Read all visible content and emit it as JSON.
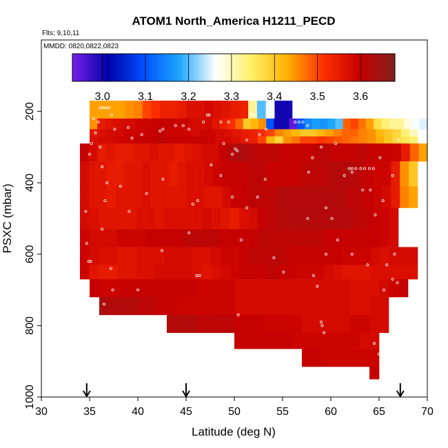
{
  "chart_data": {
    "type": "heatmap",
    "title": "ATOM1 North_America H1211_PECD",
    "annotations": [
      "Flts: 9,10,11",
      "MMDD: 0820,0822,0823"
    ],
    "xlabel": "Latitude (deg N)",
    "ylabel": "PSXC (mbar)",
    "xlim": [
      30,
      70
    ],
    "ylim": [
      1000,
      0
    ],
    "x_ticks": [
      30,
      35,
      40,
      45,
      50,
      55,
      60,
      65,
      70
    ],
    "y_ticks": [
      200,
      400,
      600,
      800,
      1000
    ],
    "colorbar": {
      "range": [
        2.93,
        3.68
      ],
      "ticks": [
        3.0,
        3.1,
        3.2,
        3.3,
        3.4,
        3.5,
        3.6
      ],
      "colors": [
        "#7a1fe8",
        "#0000a8",
        "#0050ff",
        "#1ea8ff",
        "#ffffff",
        "#fff066",
        "#ffb000",
        "#ff3000",
        "#c80000",
        "#802020"
      ]
    },
    "flight_markers_lat": [
      34.7,
      45.0,
      67.2
    ],
    "rows": [
      {
        "p": [
          170,
          220
        ],
        "lat": [
          35,
          56
        ],
        "values": [
          3.44,
          3.44,
          3.44,
          3.44,
          3.45,
          3.46,
          3.5,
          3.52,
          3.54,
          3.54,
          3.55,
          3.57,
          3.57,
          3.58,
          3.57,
          3.56,
          3.55,
          3.54,
          3.32,
          3.2,
          3.26,
          3.0,
          3.0
        ]
      },
      {
        "p": [
          220,
          250
        ],
        "lat": [
          35,
          70
        ],
        "values": [
          3.45,
          3.55,
          3.56,
          3.57,
          3.58,
          3.58,
          3.59,
          3.59,
          3.6,
          3.6,
          3.6,
          3.59,
          3.59,
          3.58,
          3.58,
          3.58,
          3.56,
          3.54,
          3.52,
          3.48,
          3.4,
          3.42,
          3.45,
          3.1,
          3.0,
          3.0,
          2.95,
          3.1,
          3.15,
          3.17,
          3.16,
          3.18,
          3.2,
          3.48,
          3.5,
          3.47,
          3.44,
          3.37,
          3.34,
          3.32,
          3.32,
          3.28,
          3.26,
          3.25
        ]
      },
      {
        "p": [
          250,
          270
        ],
        "lat": [
          35,
          69
        ],
        "values": [
          3.56,
          3.57,
          3.58,
          3.58,
          3.59,
          3.59,
          3.59,
          3.6,
          3.6,
          3.59,
          3.59,
          3.59,
          3.58,
          3.59,
          3.59,
          3.58,
          3.57,
          3.56,
          3.55,
          3.54,
          3.52,
          3.5,
          3.46,
          3.44,
          3.42,
          3.4,
          3.4,
          3.42,
          3.44,
          3.46,
          3.48,
          3.48,
          3.46,
          3.45,
          3.42,
          3.4,
          3.38,
          3.34,
          3.3
        ]
      },
      {
        "p": [
          270,
          290
        ],
        "lat": [
          35,
          69
        ],
        "values": [
          3.57,
          3.58,
          3.58,
          3.59,
          3.59,
          3.6,
          3.6,
          3.6,
          3.61,
          3.6,
          3.6,
          3.6,
          3.6,
          3.6,
          3.59,
          3.58,
          3.58,
          3.57,
          3.55,
          3.54,
          3.5,
          3.42,
          3.38,
          3.45,
          3.47,
          3.5,
          3.5,
          3.51,
          3.5,
          3.49,
          3.48,
          3.47,
          3.46,
          3.45,
          3.43,
          3.4,
          3.38,
          3.36,
          3.34
        ]
      },
      {
        "p": [
          290,
          340
        ],
        "lat": [
          34,
          70
        ],
        "values": [
          3.6,
          3.58,
          3.55,
          3.56,
          3.55,
          3.55,
          3.56,
          3.56,
          3.57,
          3.56,
          3.56,
          3.55,
          3.56,
          3.57,
          3.58,
          3.58,
          3.6,
          3.62,
          3.63,
          3.62,
          3.61,
          3.61,
          3.61,
          3.6,
          3.6,
          3.6,
          3.6,
          3.61,
          3.61,
          3.6,
          3.6,
          3.6,
          3.61,
          3.6,
          3.6,
          3.6,
          3.59,
          3.55,
          3.48,
          3.44
        ]
      },
      {
        "p": [
          340,
          410
        ],
        "lat": [
          34,
          69
        ],
        "values": [
          3.58,
          3.56,
          3.56,
          3.55,
          3.55,
          3.56,
          3.56,
          3.57,
          3.56,
          3.56,
          3.55,
          3.56,
          3.57,
          3.57,
          3.58,
          3.59,
          3.6,
          3.6,
          3.6,
          3.61,
          3.61,
          3.6,
          3.6,
          3.6,
          3.6,
          3.61,
          3.61,
          3.61,
          3.62,
          3.62,
          3.62,
          3.61,
          3.6,
          3.59,
          3.59,
          3.55,
          3.45,
          3.4
        ]
      },
      {
        "p": [
          410,
          470
        ],
        "lat": [
          34,
          69
        ],
        "values": [
          3.58,
          3.56,
          3.56,
          3.55,
          3.56,
          3.56,
          3.56,
          3.57,
          3.56,
          3.56,
          3.56,
          3.56,
          3.57,
          3.57,
          3.56,
          3.56,
          3.58,
          3.6,
          3.6,
          3.61,
          3.61,
          3.61,
          3.62,
          3.62,
          3.62,
          3.62,
          3.62,
          3.62,
          3.62,
          3.62,
          3.61,
          3.61,
          3.6,
          3.59,
          3.58,
          3.55,
          3.46,
          3.44
        ]
      },
      {
        "p": [
          470,
          530
        ],
        "lat": [
          34,
          67
        ],
        "values": [
          3.58,
          3.57,
          3.56,
          3.56,
          3.56,
          3.56,
          3.57,
          3.57,
          3.56,
          3.57,
          3.57,
          3.57,
          3.57,
          3.58,
          3.57,
          3.56,
          3.55,
          3.57,
          3.58,
          3.6,
          3.61,
          3.62,
          3.62,
          3.62,
          3.62,
          3.62,
          3.62,
          3.62,
          3.62,
          3.61,
          3.61,
          3.6,
          3.59,
          3.58
        ]
      },
      {
        "p": [
          530,
          580
        ],
        "lat": [
          34,
          67
        ],
        "values": [
          3.59,
          3.58,
          3.58,
          3.58,
          3.59,
          3.59,
          3.59,
          3.6,
          3.6,
          3.6,
          3.6,
          3.61,
          3.61,
          3.61,
          3.61,
          3.6,
          3.6,
          3.6,
          3.6,
          3.61,
          3.61,
          3.61,
          3.61,
          3.61,
          3.61,
          3.61,
          3.6,
          3.6,
          3.6,
          3.6,
          3.6,
          3.6,
          3.59,
          3.58
        ]
      },
      {
        "p": [
          580,
          630
        ],
        "lat": [
          34,
          69
        ],
        "values": [
          3.59,
          3.58,
          3.57,
          3.57,
          3.56,
          3.56,
          3.57,
          3.57,
          3.57,
          3.58,
          3.58,
          3.58,
          3.57,
          3.57,
          3.58,
          3.59,
          3.59,
          3.6,
          3.61,
          3.61,
          3.61,
          3.61,
          3.6,
          3.6,
          3.6,
          3.6,
          3.6,
          3.6,
          3.59,
          3.59,
          3.59,
          3.58,
          3.57,
          3.58,
          3.58,
          3.58
        ]
      },
      {
        "p": [
          630,
          670
        ],
        "lat": [
          34,
          69
        ],
        "values": [
          3.59,
          3.56,
          3.55,
          3.55,
          3.56,
          3.56,
          3.57,
          3.57,
          3.58,
          3.58,
          3.58,
          3.58,
          3.57,
          3.56,
          3.57,
          3.58,
          3.59,
          3.6,
          3.6,
          3.6,
          3.61,
          3.6,
          3.6,
          3.59,
          3.59,
          3.59,
          3.58,
          3.57,
          3.56,
          3.56,
          3.56,
          3.57,
          3.57,
          3.57,
          3.57,
          3.57
        ]
      },
      {
        "p": [
          670,
          720
        ],
        "lat": [
          35,
          68
        ],
        "values": [
          3.6,
          3.59,
          3.59,
          3.6,
          3.6,
          3.6,
          3.6,
          3.6,
          3.6,
          3.6,
          3.6,
          3.59,
          3.59,
          3.59,
          3.59,
          3.58,
          3.58,
          3.58,
          3.58,
          3.58,
          3.58,
          3.58,
          3.58,
          3.58,
          3.58,
          3.58,
          3.58,
          3.57,
          3.57,
          3.57,
          3.58,
          3.59,
          3.6
        ]
      },
      {
        "p": [
          720,
          770
        ],
        "lat": [
          36,
          66
        ],
        "values": [
          3.63,
          3.62,
          3.62,
          3.62,
          3.61,
          3.61,
          3.6,
          3.6,
          3.59,
          3.59,
          3.59,
          3.59,
          3.59,
          3.59,
          3.58,
          3.58,
          3.58,
          3.58,
          3.58,
          3.58,
          3.58,
          3.58,
          3.58,
          3.58,
          3.58,
          3.58,
          3.57,
          3.57,
          3.58,
          3.58
        ]
      },
      {
        "p": [
          770,
          820
        ],
        "lat": [
          43,
          66
        ],
        "values": [
          3.62,
          3.62,
          3.62,
          3.61,
          3.61,
          3.61,
          3.61,
          3.6,
          3.6,
          3.6,
          3.59,
          3.59,
          3.59,
          3.59,
          3.58,
          3.58,
          3.58,
          3.58,
          3.58,
          3.59,
          3.59,
          3.58,
          3.58
        ]
      },
      {
        "p": [
          820,
          865
        ],
        "lat": [
          50,
          65
        ],
        "values": [
          3.6,
          3.6,
          3.6,
          3.6,
          3.6,
          3.6,
          3.59,
          3.59,
          3.59,
          3.59,
          3.59,
          3.59,
          3.59,
          3.58,
          3.58
        ]
      },
      {
        "p": [
          865,
          915
        ],
        "lat": [
          57,
          65
        ],
        "values": [
          3.6,
          3.6,
          3.59,
          3.59,
          3.59,
          3.59,
          3.59,
          3.59
        ]
      },
      {
        "p": [
          915,
          950
        ],
        "lat": [
          64,
          65
        ],
        "values": [
          3.6
        ]
      }
    ],
    "samples": [
      [
        35.4,
        220
      ],
      [
        35.9,
        230
      ],
      [
        36.1,
        190
      ],
      [
        36.4,
        190
      ],
      [
        36.7,
        190
      ],
      [
        37.0,
        190
      ],
      [
        37.3,
        210
      ],
      [
        35.6,
        260
      ],
      [
        35.2,
        290
      ],
      [
        36.1,
        300
      ],
      [
        37.6,
        250
      ],
      [
        39.0,
        245
      ],
      [
        39.4,
        275
      ],
      [
        40.4,
        265
      ],
      [
        42.3,
        255
      ],
      [
        42.6,
        250
      ],
      [
        43.9,
        240
      ],
      [
        44.7,
        240
      ],
      [
        45.3,
        250
      ],
      [
        46.8,
        230
      ],
      [
        47.2,
        210
      ],
      [
        47.4,
        210
      ],
      [
        48.6,
        230
      ],
      [
        48.9,
        290
      ],
      [
        49.4,
        230
      ],
      [
        49.8,
        320
      ],
      [
        50.1,
        305
      ],
      [
        50.3,
        310
      ],
      [
        51.3,
        280
      ],
      [
        51.7,
        210
      ],
      [
        52.0,
        210
      ],
      [
        52.6,
        265
      ],
      [
        53.3,
        250
      ],
      [
        56.3,
        230
      ],
      [
        56.7,
        230
      ],
      [
        57.1,
        230
      ],
      [
        57.6,
        240
      ],
      [
        58.1,
        330
      ],
      [
        57.7,
        370
      ],
      [
        59.0,
        300
      ],
      [
        60.5,
        290
      ],
      [
        61.9,
        360
      ],
      [
        62.2,
        360
      ],
      [
        62.6,
        360
      ],
      [
        63.1,
        360
      ],
      [
        63.5,
        360
      ],
      [
        64.0,
        360
      ],
      [
        64.4,
        360
      ],
      [
        65.1,
        330
      ],
      [
        67.0,
        280
      ],
      [
        69.4,
        220
      ],
      [
        35.0,
        320
      ],
      [
        36.3,
        355
      ],
      [
        36.8,
        400
      ],
      [
        36.6,
        450
      ],
      [
        38.2,
        410
      ],
      [
        39.1,
        480
      ],
      [
        40.9,
        430
      ],
      [
        42.6,
        390
      ],
      [
        45.7,
        460
      ],
      [
        46.2,
        450
      ],
      [
        47.6,
        350
      ],
      [
        48.6,
        380
      ],
      [
        49.8,
        440
      ],
      [
        51.3,
        470
      ],
      [
        52.4,
        440
      ],
      [
        53.2,
        390
      ],
      [
        57.6,
        500
      ],
      [
        59.5,
        470
      ],
      [
        60.1,
        500
      ],
      [
        61.4,
        380
      ],
      [
        62.2,
        370
      ],
      [
        63.3,
        420
      ],
      [
        64.1,
        420
      ],
      [
        64.6,
        490
      ],
      [
        65.4,
        450
      ],
      [
        66.4,
        380
      ],
      [
        34.6,
        480
      ],
      [
        34.7,
        570
      ],
      [
        34.9,
        620
      ],
      [
        35.1,
        620
      ],
      [
        36.3,
        530
      ],
      [
        37.2,
        640
      ],
      [
        40.0,
        700
      ],
      [
        42.5,
        590
      ],
      [
        45.3,
        540
      ],
      [
        46.1,
        660
      ],
      [
        46.4,
        660
      ],
      [
        50.7,
        560
      ],
      [
        54.1,
        610
      ],
      [
        55.1,
        650
      ],
      [
        58.2,
        660
      ],
      [
        58.6,
        690
      ],
      [
        59.5,
        600
      ],
      [
        60.7,
        560
      ],
      [
        62.2,
        600
      ],
      [
        63.8,
        630
      ],
      [
        65.8,
        630
      ],
      [
        66.6,
        600
      ],
      [
        65.5,
        700
      ],
      [
        66.4,
        670
      ],
      [
        66.9,
        680
      ],
      [
        36.5,
        740
      ],
      [
        37.4,
        700
      ],
      [
        50.4,
        770
      ],
      [
        59.0,
        790
      ],
      [
        59.1,
        800
      ],
      [
        59.3,
        820
      ],
      [
        64.5,
        850
      ],
      [
        65.0,
        880
      ]
    ]
  }
}
